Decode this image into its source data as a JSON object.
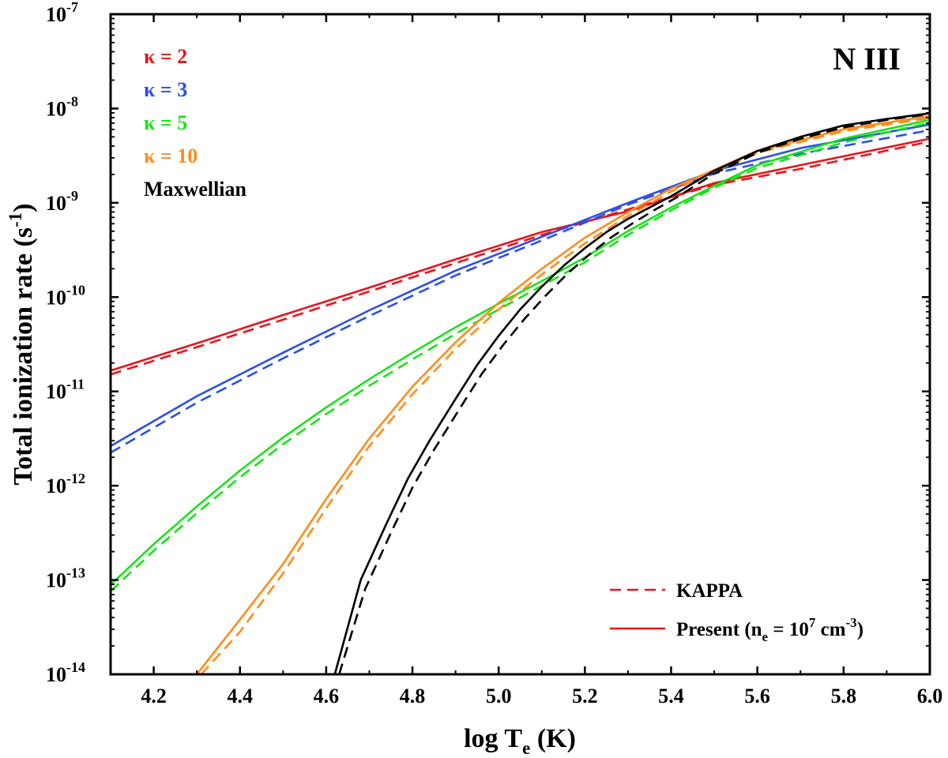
{
  "chart_data": {
    "type": "line",
    "title": "N III",
    "xlabel": {
      "main": "log T",
      "sub": "e",
      "tail": " (K)"
    },
    "ylabel": {
      "main": "Total ionization rate (s",
      "sup": "-1",
      "tail": ")"
    },
    "xlim": [
      4.1,
      6.0
    ],
    "ylim_log10": [
      -14,
      -7
    ],
    "y_scale": "log",
    "x_ticks": [
      "4.2",
      "4.4",
      "4.6",
      "4.8",
      "5.0",
      "5.2",
      "5.4",
      "5.6",
      "5.8",
      "6.0"
    ],
    "y_ticks": [
      {
        "base": "10",
        "exp": "-14"
      },
      {
        "base": "10",
        "exp": "-13"
      },
      {
        "base": "10",
        "exp": "-12"
      },
      {
        "base": "10",
        "exp": "-11"
      },
      {
        "base": "10",
        "exp": "-10"
      },
      {
        "base": "10",
        "exp": "-9"
      },
      {
        "base": "10",
        "exp": "-8"
      },
      {
        "base": "10",
        "exp": "-7"
      }
    ],
    "grid": false,
    "legend_labels": [
      {
        "text": "κ = 2",
        "color": "#e8141c"
      },
      {
        "text": "κ = 3",
        "color": "#2b4ee8"
      },
      {
        "text": "κ = 5",
        "color": "#19e219"
      },
      {
        "text": "κ = 10",
        "color": "#ff8c1a"
      },
      {
        "text": "Maxwellian",
        "color": "#000000"
      }
    ],
    "style_legend": {
      "dashed_label": "KAPPA",
      "solid_label": "Present (n",
      "solid_sub": "e",
      "solid_mid": " = 10",
      "solid_sup1": "7",
      "solid_mid2": " cm",
      "solid_sup2": "-3",
      "solid_end": ")",
      "color": "#e8141c"
    },
    "series": [
      {
        "name": "κ = 2",
        "style": "solid",
        "color": "#e8141c",
        "x": [
          4.1,
          4.3,
          4.5,
          4.7,
          4.9,
          5.1,
          5.3,
          5.5,
          5.7,
          6.0
        ],
        "log_y": [
          -10.78,
          -10.49,
          -10.19,
          -9.9,
          -9.6,
          -9.31,
          -9.09,
          -8.79,
          -8.6,
          -8.32
        ]
      },
      {
        "name": "κ = 2",
        "style": "dashed",
        "color": "#e8141c",
        "x": [
          4.1,
          4.3,
          4.5,
          4.7,
          4.9,
          5.1,
          5.3,
          5.5,
          5.7,
          6.0
        ],
        "log_y": [
          -10.82,
          -10.53,
          -10.24,
          -9.94,
          -9.64,
          -9.34,
          -9.07,
          -8.81,
          -8.64,
          -8.35
        ]
      },
      {
        "name": "κ = 3",
        "style": "solid",
        "color": "#2b4ee8",
        "x": [
          4.1,
          4.3,
          4.5,
          4.7,
          4.9,
          5.1,
          5.3,
          5.5,
          5.7,
          6.0
        ],
        "log_y": [
          -11.58,
          -11.05,
          -10.59,
          -10.14,
          -9.72,
          -9.36,
          -9.0,
          -8.66,
          -8.42,
          -8.17
        ]
      },
      {
        "name": "κ = 3",
        "style": "dashed",
        "color": "#2b4ee8",
        "x": [
          4.1,
          4.3,
          4.5,
          4.7,
          4.9,
          5.1,
          5.3,
          5.5,
          5.7,
          6.0
        ],
        "log_y": [
          -11.65,
          -11.12,
          -10.65,
          -10.2,
          -9.77,
          -9.4,
          -9.02,
          -8.69,
          -8.48,
          -8.23
        ]
      },
      {
        "name": "κ = 5",
        "style": "solid",
        "color": "#19e219",
        "x": [
          4.1,
          4.2,
          4.3,
          4.4,
          4.5,
          4.6,
          4.7,
          4.8,
          4.9,
          5.0,
          5.1,
          5.2,
          5.3,
          5.4,
          5.5,
          5.6,
          5.8,
          6.0
        ],
        "log_y": [
          -13.05,
          -12.62,
          -12.22,
          -11.84,
          -11.49,
          -11.17,
          -10.87,
          -10.59,
          -10.32,
          -10.07,
          -9.83,
          -9.58,
          -9.3,
          -9.05,
          -8.82,
          -8.6,
          -8.32,
          -8.12
        ]
      },
      {
        "name": "κ = 5",
        "style": "dashed",
        "color": "#19e219",
        "x": [
          4.1,
          4.2,
          4.3,
          4.4,
          4.5,
          4.6,
          4.7,
          4.8,
          4.9,
          5.0,
          5.1,
          5.2,
          5.3,
          5.4,
          5.5,
          5.6,
          5.8,
          6.0
        ],
        "log_y": [
          -13.12,
          -12.69,
          -12.29,
          -11.91,
          -11.56,
          -11.24,
          -10.94,
          -10.66,
          -10.39,
          -10.13,
          -9.88,
          -9.63,
          -9.34,
          -9.08,
          -8.84,
          -8.63,
          -8.36,
          -8.15
        ]
      },
      {
        "name": "κ = 10",
        "style": "solid",
        "color": "#ff8c1a",
        "x": [
          4.3,
          4.4,
          4.5,
          4.6,
          4.7,
          4.8,
          4.9,
          5.0,
          5.1,
          5.2,
          5.3,
          5.4,
          5.5,
          5.6,
          5.8,
          6.0
        ],
        "log_y": [
          -14.0,
          -13.42,
          -12.83,
          -12.14,
          -11.5,
          -10.95,
          -10.48,
          -10.06,
          -9.7,
          -9.37,
          -9.1,
          -8.85,
          -8.65,
          -8.45,
          -8.22,
          -8.08
        ]
      },
      {
        "name": "κ = 10",
        "style": "dashed",
        "color": "#ff8c1a",
        "x": [
          4.31,
          4.4,
          4.5,
          4.6,
          4.7,
          4.8,
          4.9,
          5.0,
          5.1,
          5.2,
          5.3,
          5.4,
          5.5,
          5.6,
          5.8,
          6.0
        ],
        "log_y": [
          -14.0,
          -13.55,
          -12.93,
          -12.24,
          -11.58,
          -11.03,
          -10.55,
          -10.13,
          -9.76,
          -9.43,
          -9.14,
          -8.88,
          -8.67,
          -8.47,
          -8.24,
          -8.1
        ]
      },
      {
        "name": "Maxwellian",
        "style": "solid",
        "color": "#000000",
        "x": [
          4.62,
          4.68,
          4.74,
          4.79,
          4.84,
          4.9,
          4.95,
          5.0,
          5.05,
          5.1,
          5.15,
          5.2,
          5.25,
          5.3,
          5.35,
          5.4,
          5.5,
          5.6,
          5.7,
          5.8,
          5.9,
          6.0
        ],
        "log_y": [
          -14.0,
          -13.0,
          -12.4,
          -11.92,
          -11.52,
          -11.08,
          -10.72,
          -10.41,
          -10.13,
          -9.89,
          -9.67,
          -9.48,
          -9.31,
          -9.17,
          -9.05,
          -8.93,
          -8.66,
          -8.45,
          -8.3,
          -8.18,
          -8.11,
          -8.05
        ]
      },
      {
        "name": "Maxwellian",
        "style": "dashed",
        "color": "#000000",
        "x": [
          4.63,
          4.69,
          4.75,
          4.8,
          4.85,
          4.91,
          4.96,
          5.01,
          5.06,
          5.11,
          5.16,
          5.21,
          5.26,
          5.31,
          5.36,
          5.41,
          5.5,
          5.6,
          5.7,
          5.8,
          5.9,
          6.0
        ],
        "log_y": [
          -14.0,
          -13.1,
          -12.5,
          -12.02,
          -11.62,
          -11.18,
          -10.82,
          -10.51,
          -10.23,
          -9.98,
          -9.75,
          -9.55,
          -9.37,
          -9.22,
          -9.08,
          -8.95,
          -8.69,
          -8.47,
          -8.32,
          -8.2,
          -8.12,
          -8.06
        ]
      }
    ]
  }
}
